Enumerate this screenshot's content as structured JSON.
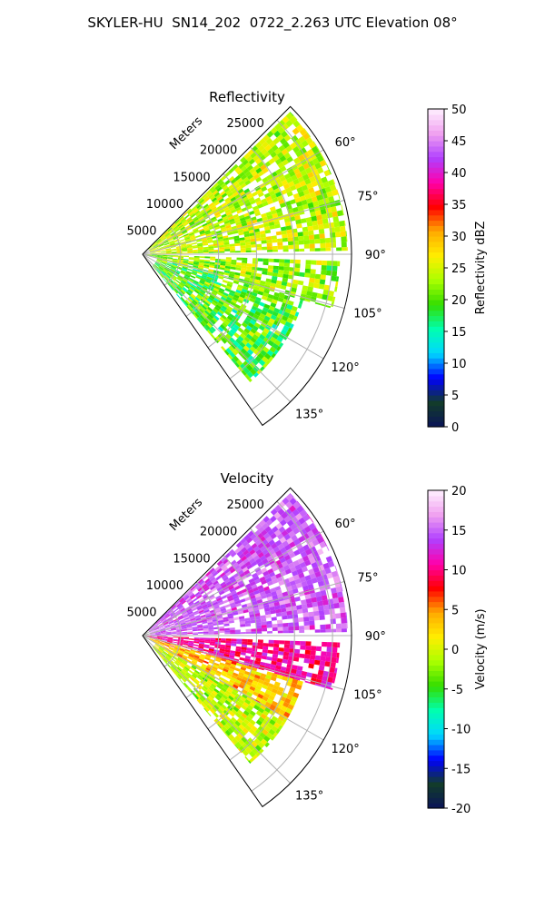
{
  "figure": {
    "title": "SKYLER-HU  SN14_202  0722_2.263 UTC Elevation 08°"
  },
  "chart_data": [
    {
      "type": "heatmap",
      "subtype": "polar-sector-ppi",
      "title": "Reflectivity",
      "range_axis_label": "Meters",
      "range_ticks": [
        "5000",
        "10000",
        "15000",
        "20000",
        "25000"
      ],
      "range_tick_values": [
        5000,
        10000,
        15000,
        20000,
        25000
      ],
      "range_max": 27500,
      "azimuth_range_deg": [
        45,
        145
      ],
      "azimuth_ticks": [
        "60°",
        "75°",
        "90°",
        "105°",
        "120°",
        "135°"
      ],
      "azimuth_tick_values": [
        60,
        75,
        90,
        105,
        120,
        135
      ],
      "grid": true,
      "colorbar": {
        "label": "Reflectivity dBZ",
        "ticks": [
          "0",
          "5",
          "10",
          "15",
          "20",
          "25",
          "30",
          "35",
          "40",
          "45",
          "50"
        ],
        "range": [
          0,
          50
        ],
        "colormap_hex": [
          "#0a1458",
          "#123c2a",
          "#0000ff",
          "#00d6ff",
          "#00ffb0",
          "#33dd00",
          "#aaff00",
          "#ffee00",
          "#ffaa00",
          "#ff0000",
          "#ff00aa",
          "#b040ff",
          "#f0a0f0",
          "#fff0ff"
        ]
      },
      "echo_regions": [
        {
          "az_start": 46,
          "az_end": 89,
          "r_min": 1000,
          "r_max": 27000,
          "dominant_dBZ": [
            20,
            28
          ]
        },
        {
          "az_start": 92,
          "az_end": 106,
          "r_min": 500,
          "r_max": 26000,
          "dominant_dBZ": [
            18,
            27
          ]
        },
        {
          "az_start": 106,
          "az_end": 140,
          "r_min": 2000,
          "r_max": 22000,
          "dominant_dBZ": [
            15,
            25
          ]
        }
      ]
    },
    {
      "type": "heatmap",
      "subtype": "polar-sector-ppi",
      "title": "Velocity",
      "range_axis_label": "Meters",
      "range_ticks": [
        "5000",
        "10000",
        "15000",
        "20000",
        "25000"
      ],
      "range_tick_values": [
        5000,
        10000,
        15000,
        20000,
        25000
      ],
      "range_max": 27500,
      "azimuth_range_deg": [
        45,
        145
      ],
      "azimuth_ticks": [
        "60°",
        "75°",
        "90°",
        "105°",
        "120°",
        "135°"
      ],
      "azimuth_tick_values": [
        60,
        75,
        90,
        105,
        120,
        135
      ],
      "grid": true,
      "colorbar": {
        "label": "Velocity (m/s)",
        "ticks": [
          "-20",
          "-15",
          "-10",
          "-5",
          "0",
          "5",
          "10",
          "15",
          "20"
        ],
        "range": [
          -20,
          20
        ],
        "colormap_hex": [
          "#0a1458",
          "#123c2a",
          "#0000ff",
          "#00d6ff",
          "#00ffb0",
          "#33dd00",
          "#aaff00",
          "#ffee00",
          "#ffaa00",
          "#ff0000",
          "#ff00aa",
          "#b040ff",
          "#f0a0f0",
          "#fff0ff"
        ]
      },
      "echo_regions": [
        {
          "az_start": 46,
          "az_end": 89,
          "r_min": 1000,
          "r_max": 27000,
          "dominant_ms": [
            13,
            16
          ]
        },
        {
          "az_start": 92,
          "az_end": 106,
          "r_min": 500,
          "r_max": 26000,
          "dominant_ms": [
            9,
            12
          ]
        },
        {
          "az_start": 106,
          "az_end": 120,
          "r_min": 1000,
          "r_max": 22000,
          "dominant_ms": [
            1,
            6
          ]
        },
        {
          "az_start": 120,
          "az_end": 140,
          "r_min": 2000,
          "r_max": 22000,
          "dominant_ms": [
            -3,
            2
          ]
        }
      ]
    }
  ]
}
